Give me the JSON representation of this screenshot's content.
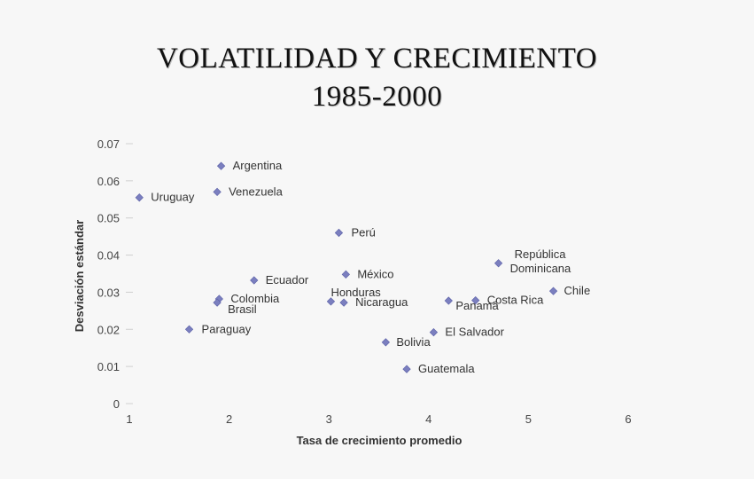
{
  "slide": {
    "title_line1": "VOLATILIDAD Y CRECIMIENTO",
    "title_line2": "1985-2000"
  },
  "chart_data": {
    "type": "scatter",
    "xlabel": "Tasa de crecimiento promedio",
    "ylabel": "Desviación estándar",
    "xlim": [
      1,
      6
    ],
    "ylim": [
      0,
      0.07
    ],
    "x_ticks": [
      "1",
      "2",
      "3",
      "4",
      "5",
      "6"
    ],
    "y_ticks": [
      "0",
      "0.01",
      "0.02",
      "0.03",
      "0.04",
      "0.05",
      "0.06",
      "0.07"
    ],
    "grid": false,
    "marker_color": "#7b7fbf",
    "points": [
      {
        "label": "Argentina",
        "x": 1.92,
        "y": 0.064
      },
      {
        "label": "Uruguay",
        "x": 1.1,
        "y": 0.0555
      },
      {
        "label": "Venezuela",
        "x": 1.88,
        "y": 0.057
      },
      {
        "label": "Perú",
        "x": 3.1,
        "y": 0.046
      },
      {
        "label": "República Dominicana",
        "x": 4.7,
        "y": 0.0378
      },
      {
        "label": "México",
        "x": 3.17,
        "y": 0.0348
      },
      {
        "label": "Ecuador",
        "x": 2.25,
        "y": 0.0332
      },
      {
        "label": "Chile",
        "x": 5.25,
        "y": 0.0303
      },
      {
        "label": "Colombia",
        "x": 1.9,
        "y": 0.0282
      },
      {
        "label": "Brasil",
        "x": 1.88,
        "y": 0.0272
      },
      {
        "label": "Honduras",
        "x": 3.02,
        "y": 0.0275
      },
      {
        "label": "Nicaragua",
        "x": 3.15,
        "y": 0.0272
      },
      {
        "label": "Panamá",
        "x": 4.2,
        "y": 0.0277
      },
      {
        "label": "Costa Rica",
        "x": 4.47,
        "y": 0.0278
      },
      {
        "label": "Paraguay",
        "x": 1.6,
        "y": 0.02
      },
      {
        "label": "El Salvador",
        "x": 4.05,
        "y": 0.0192
      },
      {
        "label": "Bolivia",
        "x": 3.57,
        "y": 0.0165
      },
      {
        "label": "Guatemala",
        "x": 3.78,
        "y": 0.0093
      }
    ]
  }
}
